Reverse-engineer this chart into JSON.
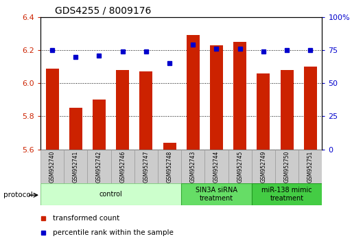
{
  "title": "GDS4255 / 8009176",
  "samples": [
    "GSM952740",
    "GSM952741",
    "GSM952742",
    "GSM952746",
    "GSM952747",
    "GSM952748",
    "GSM952743",
    "GSM952744",
    "GSM952745",
    "GSM952749",
    "GSM952750",
    "GSM952751"
  ],
  "transformed_count": [
    6.09,
    5.85,
    5.9,
    6.08,
    6.07,
    5.64,
    6.29,
    6.23,
    6.25,
    6.06,
    6.08,
    6.1
  ],
  "percentile_rank": [
    75,
    70,
    71,
    74,
    74,
    65,
    79,
    76,
    76,
    74,
    75,
    75
  ],
  "bar_color": "#cc2200",
  "dot_color": "#0000cc",
  "ylim_left": [
    5.6,
    6.4
  ],
  "ylim_right": [
    0,
    100
  ],
  "yticks_left": [
    5.6,
    5.8,
    6.0,
    6.2,
    6.4
  ],
  "yticks_right": [
    0,
    25,
    50,
    75,
    100
  ],
  "groups": [
    {
      "label": "control",
      "start": 0,
      "end": 5,
      "color": "#ccffcc",
      "border": "#88cc88"
    },
    {
      "label": "SIN3A siRNA\ntreatment",
      "start": 6,
      "end": 8,
      "color": "#66dd66",
      "border": "#33aa33"
    },
    {
      "label": "miR-138 mimic\ntreatment",
      "start": 9,
      "end": 11,
      "color": "#44cc44",
      "border": "#229922"
    }
  ],
  "legend_bar_label": "transformed count",
  "legend_dot_label": "percentile rank within the sample",
  "protocol_label": "protocol",
  "background_color": "#ffffff",
  "tick_color_left": "#cc2200",
  "tick_color_right": "#0000cc",
  "label_box_color": "#cccccc",
  "label_box_edge": "#999999"
}
